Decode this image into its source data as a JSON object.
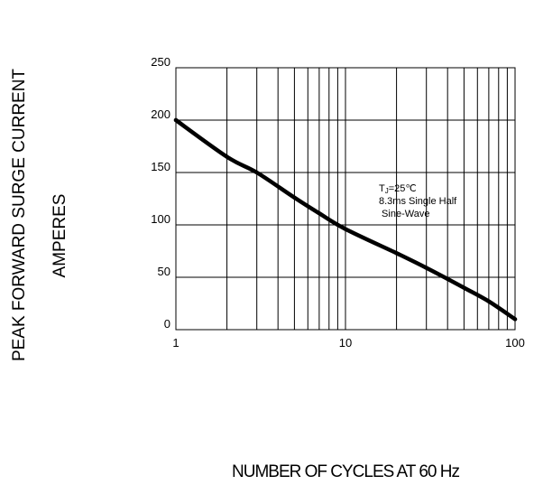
{
  "chart_data": {
    "type": "line",
    "title": "",
    "ylabel": [
      "PEAK FORWARD SURGE CURRENT",
      "AMPERES"
    ],
    "xlabel": "NUMBER OF CYCLES AT 60 Hz",
    "x_scale": "log",
    "xlim": [
      1,
      100
    ],
    "ylim": [
      0,
      250
    ],
    "grid": true,
    "x_ticks": [
      1,
      10,
      100
    ],
    "x_tick_labels": [
      "1",
      "10",
      "100"
    ],
    "y_ticks": [
      0,
      50,
      100,
      150,
      200,
      250
    ],
    "y_tick_labels": [
      "0",
      "50",
      "100",
      "150",
      "200",
      "250"
    ],
    "annotation": [
      "TJ=25℃",
      "8.3ms Single Half",
      " Sine-Wave"
    ],
    "series": [
      {
        "x": [
          1,
          2,
          3,
          5,
          7,
          10,
          20,
          30,
          50,
          70,
          100
        ],
        "y": [
          200,
          165,
          150,
          126,
          111,
          96,
          73,
          59,
          40,
          27,
          10
        ]
      }
    ],
    "line_color": "#000000"
  }
}
